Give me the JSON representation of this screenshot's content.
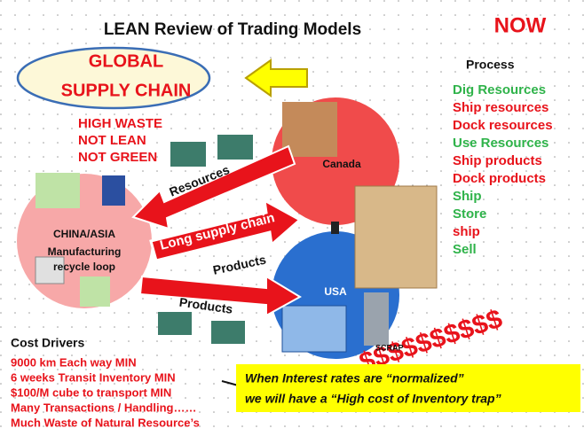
{
  "title": "LEAN Review of Trading Models",
  "now": "NOW",
  "global_supply_chain": [
    "GLOBAL",
    "SUPPLY CHAIN"
  ],
  "waste_notes": [
    "HIGH WASTE",
    "NOT LEAN",
    "NOT GREEN"
  ],
  "process": {
    "heading": "Process",
    "steps": [
      {
        "label": "Dig Resources",
        "color": "#2fb34a"
      },
      {
        "label": "Ship resources",
        "color": "#e8131b"
      },
      {
        "label": "Dock resources",
        "color": "#e8131b"
      },
      {
        "label": "Use Resources",
        "color": "#2fb34a"
      },
      {
        "label": "Ship products",
        "color": "#e8131b"
      },
      {
        "label": "Dock products",
        "color": "#e8131b"
      },
      {
        "label": "Ship",
        "color": "#2fb34a"
      },
      {
        "label": "Store",
        "color": "#2fb34a"
      },
      {
        "label": "ship",
        "color": "#e8131b"
      },
      {
        "label": "Sell",
        "color": "#2fb34a"
      }
    ]
  },
  "regions": {
    "canada": "Canada",
    "usa": "USA",
    "china": [
      "CHINA/ASIA",
      "Manufacturing",
      "recycle loop"
    ]
  },
  "arrows": {
    "resources": "Resources",
    "long_chain": "Long supply chain",
    "products_1": "Products",
    "products_2": "Products"
  },
  "dollars": "$$$$$$$$$$",
  "scrap": "SCRAP",
  "cost_drivers": {
    "heading": "Cost Drivers",
    "items": [
      "9000 km Each way MIN",
      "6 weeks Transit Inventory MIN",
      "$100/M cube to transport MIN",
      "Many Transactions / Handling……",
      "Much Waste of Natural Resource’s"
    ]
  },
  "callout": [
    "When Interest rates are “normalized”",
    "we will have a “High cost of Inventory trap”"
  ]
}
